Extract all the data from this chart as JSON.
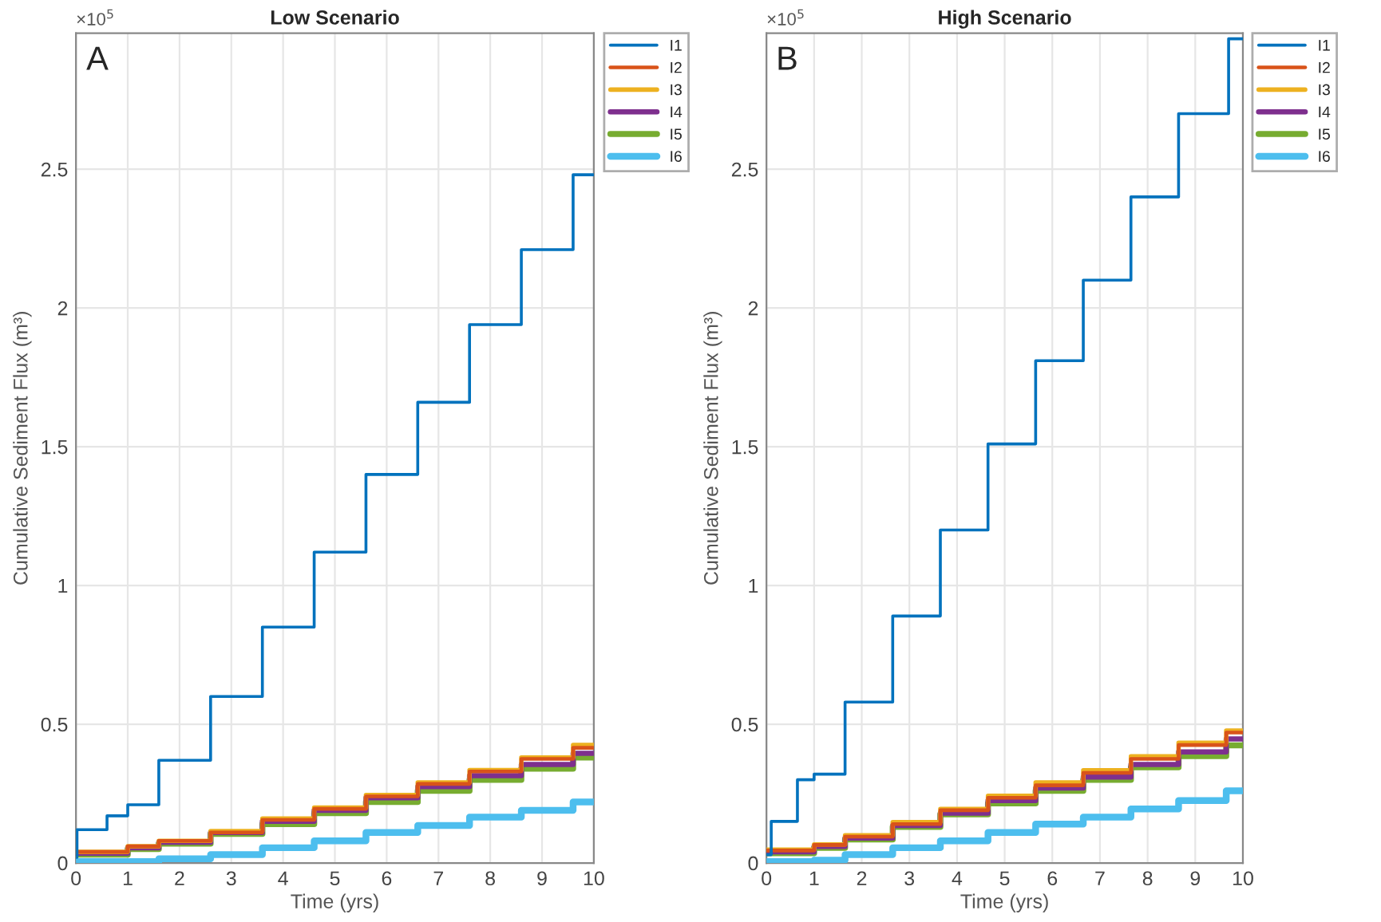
{
  "chart_data": [
    {
      "type": "step",
      "title": "Low Scenario",
      "xlabel": "Time (yrs)",
      "ylabel": "Cumulative Sediment Flux (m³)",
      "annotations": [
        "A",
        "×10$^{5}$"
      ],
      "xlim": [
        0,
        10
      ],
      "ylim": [
        0,
        2.99
      ],
      "xticks": [
        0,
        1,
        2,
        3,
        4,
        5,
        6,
        7,
        8,
        9,
        10
      ],
      "yticks": [
        0,
        0.5,
        1,
        1.5,
        2,
        2.5
      ],
      "grid": true,
      "legend": "top right",
      "marker": "none",
      "line_style": "solid",
      "series": [
        {
          "name": "I1",
          "color": "#0072bd",
          "x": [
            0,
            0.02,
            0.6,
            1.0,
            1.6,
            2.6,
            3.6,
            4.6,
            5.6,
            6.6,
            7.6,
            8.6,
            9.6,
            10
          ],
          "values": [
            0.02,
            0.12,
            0.17,
            0.21,
            0.37,
            0.6,
            0.85,
            1.12,
            1.4,
            1.66,
            1.94,
            2.21,
            2.48,
            2.48
          ]
        },
        {
          "name": "I2",
          "color": "#d95319",
          "x": [
            0,
            1,
            1.6,
            2.6,
            3.6,
            4.6,
            5.6,
            6.6,
            7.6,
            8.6,
            9.6,
            10
          ],
          "values": [
            0.04,
            0.06,
            0.08,
            0.11,
            0.155,
            0.195,
            0.24,
            0.285,
            0.33,
            0.375,
            0.415,
            0.415
          ]
        },
        {
          "name": "I3",
          "color": "#edb120",
          "x": [
            0,
            1,
            1.6,
            2.6,
            3.6,
            4.6,
            5.6,
            6.6,
            7.6,
            8.6,
            9.6,
            10
          ],
          "values": [
            0.04,
            0.06,
            0.08,
            0.115,
            0.16,
            0.2,
            0.245,
            0.29,
            0.335,
            0.38,
            0.425,
            0.425
          ]
        },
        {
          "name": "I4",
          "color": "#7e2f8e",
          "x": [
            0,
            1,
            1.6,
            2.6,
            3.6,
            4.6,
            5.6,
            6.6,
            7.6,
            8.6,
            9.6,
            10
          ],
          "values": [
            0.035,
            0.055,
            0.075,
            0.11,
            0.15,
            0.19,
            0.235,
            0.275,
            0.315,
            0.355,
            0.395,
            0.395
          ]
        },
        {
          "name": "I5",
          "color": "#77ac30",
          "x": [
            0,
            1,
            1.6,
            2.6,
            3.6,
            4.6,
            5.6,
            6.6,
            7.6,
            8.6,
            9.6,
            10
          ],
          "values": [
            0.03,
            0.05,
            0.07,
            0.105,
            0.14,
            0.18,
            0.22,
            0.26,
            0.3,
            0.34,
            0.38,
            0.38
          ]
        },
        {
          "name": "I6",
          "color": "#4dbeee",
          "x": [
            0,
            1.6,
            2.6,
            3.6,
            4.6,
            5.6,
            6.6,
            7.6,
            8.6,
            9.6,
            10
          ],
          "values": [
            0.005,
            0.015,
            0.03,
            0.055,
            0.08,
            0.11,
            0.135,
            0.165,
            0.19,
            0.22,
            0.22
          ]
        }
      ]
    },
    {
      "type": "step",
      "title": "High Scenario",
      "xlabel": "Time (yrs)",
      "ylabel": "Cumulative Sediment Flux (m³)",
      "annotations": [
        "B",
        "×10$^{5}$"
      ],
      "xlim": [
        0,
        10
      ],
      "ylim": [
        0,
        2.99
      ],
      "xticks": [
        0,
        1,
        2,
        3,
        4,
        5,
        6,
        7,
        8,
        9,
        10
      ],
      "yticks": [
        0,
        0.5,
        1,
        1.5,
        2,
        2.5
      ],
      "grid": true,
      "legend": "top right",
      "marker": "none",
      "line_style": "solid",
      "series": [
        {
          "name": "I1",
          "color": "#0072bd",
          "x": [
            0,
            0.1,
            0.65,
            1.0,
            1.65,
            2.65,
            3.65,
            4.65,
            5.65,
            6.65,
            7.65,
            8.65,
            9.7,
            10
          ],
          "values": [
            0.03,
            0.15,
            0.3,
            0.32,
            0.58,
            0.89,
            1.2,
            1.51,
            1.81,
            2.1,
            2.4,
            2.7,
            2.97,
            2.97
          ]
        },
        {
          "name": "I2",
          "color": "#d95319",
          "x": [
            0,
            1,
            1.65,
            2.65,
            3.65,
            4.65,
            5.65,
            6.65,
            7.65,
            8.65,
            9.65,
            10
          ],
          "values": [
            0.045,
            0.065,
            0.095,
            0.14,
            0.19,
            0.235,
            0.28,
            0.325,
            0.375,
            0.425,
            0.47,
            0.47
          ]
        },
        {
          "name": "I3",
          "color": "#edb120",
          "x": [
            0,
            1,
            1.65,
            2.65,
            3.65,
            4.65,
            5.65,
            6.65,
            7.65,
            8.65,
            9.65,
            10
          ],
          "values": [
            0.048,
            0.067,
            0.1,
            0.147,
            0.195,
            0.242,
            0.29,
            0.334,
            0.384,
            0.433,
            0.477,
            0.477
          ]
        },
        {
          "name": "I4",
          "color": "#7e2f8e",
          "x": [
            0,
            1,
            1.65,
            2.65,
            3.65,
            4.65,
            5.65,
            6.65,
            7.65,
            8.65,
            9.65,
            10
          ],
          "values": [
            0.04,
            0.06,
            0.09,
            0.135,
            0.18,
            0.225,
            0.27,
            0.31,
            0.355,
            0.4,
            0.447,
            0.447
          ]
        },
        {
          "name": "I5",
          "color": "#77ac30",
          "x": [
            0,
            1,
            1.65,
            2.65,
            3.65,
            4.65,
            5.65,
            6.65,
            7.65,
            8.65,
            9.65,
            10
          ],
          "values": [
            0.035,
            0.055,
            0.085,
            0.13,
            0.175,
            0.215,
            0.26,
            0.3,
            0.345,
            0.385,
            0.424,
            0.424
          ]
        },
        {
          "name": "I6",
          "color": "#4dbeee",
          "x": [
            0,
            1,
            1.65,
            2.65,
            3.65,
            4.65,
            5.65,
            6.65,
            7.65,
            8.65,
            9.65,
            10
          ],
          "values": [
            0.005,
            0.01,
            0.03,
            0.055,
            0.08,
            0.11,
            0.14,
            0.165,
            0.195,
            0.225,
            0.26,
            0.26
          ]
        }
      ]
    }
  ]
}
